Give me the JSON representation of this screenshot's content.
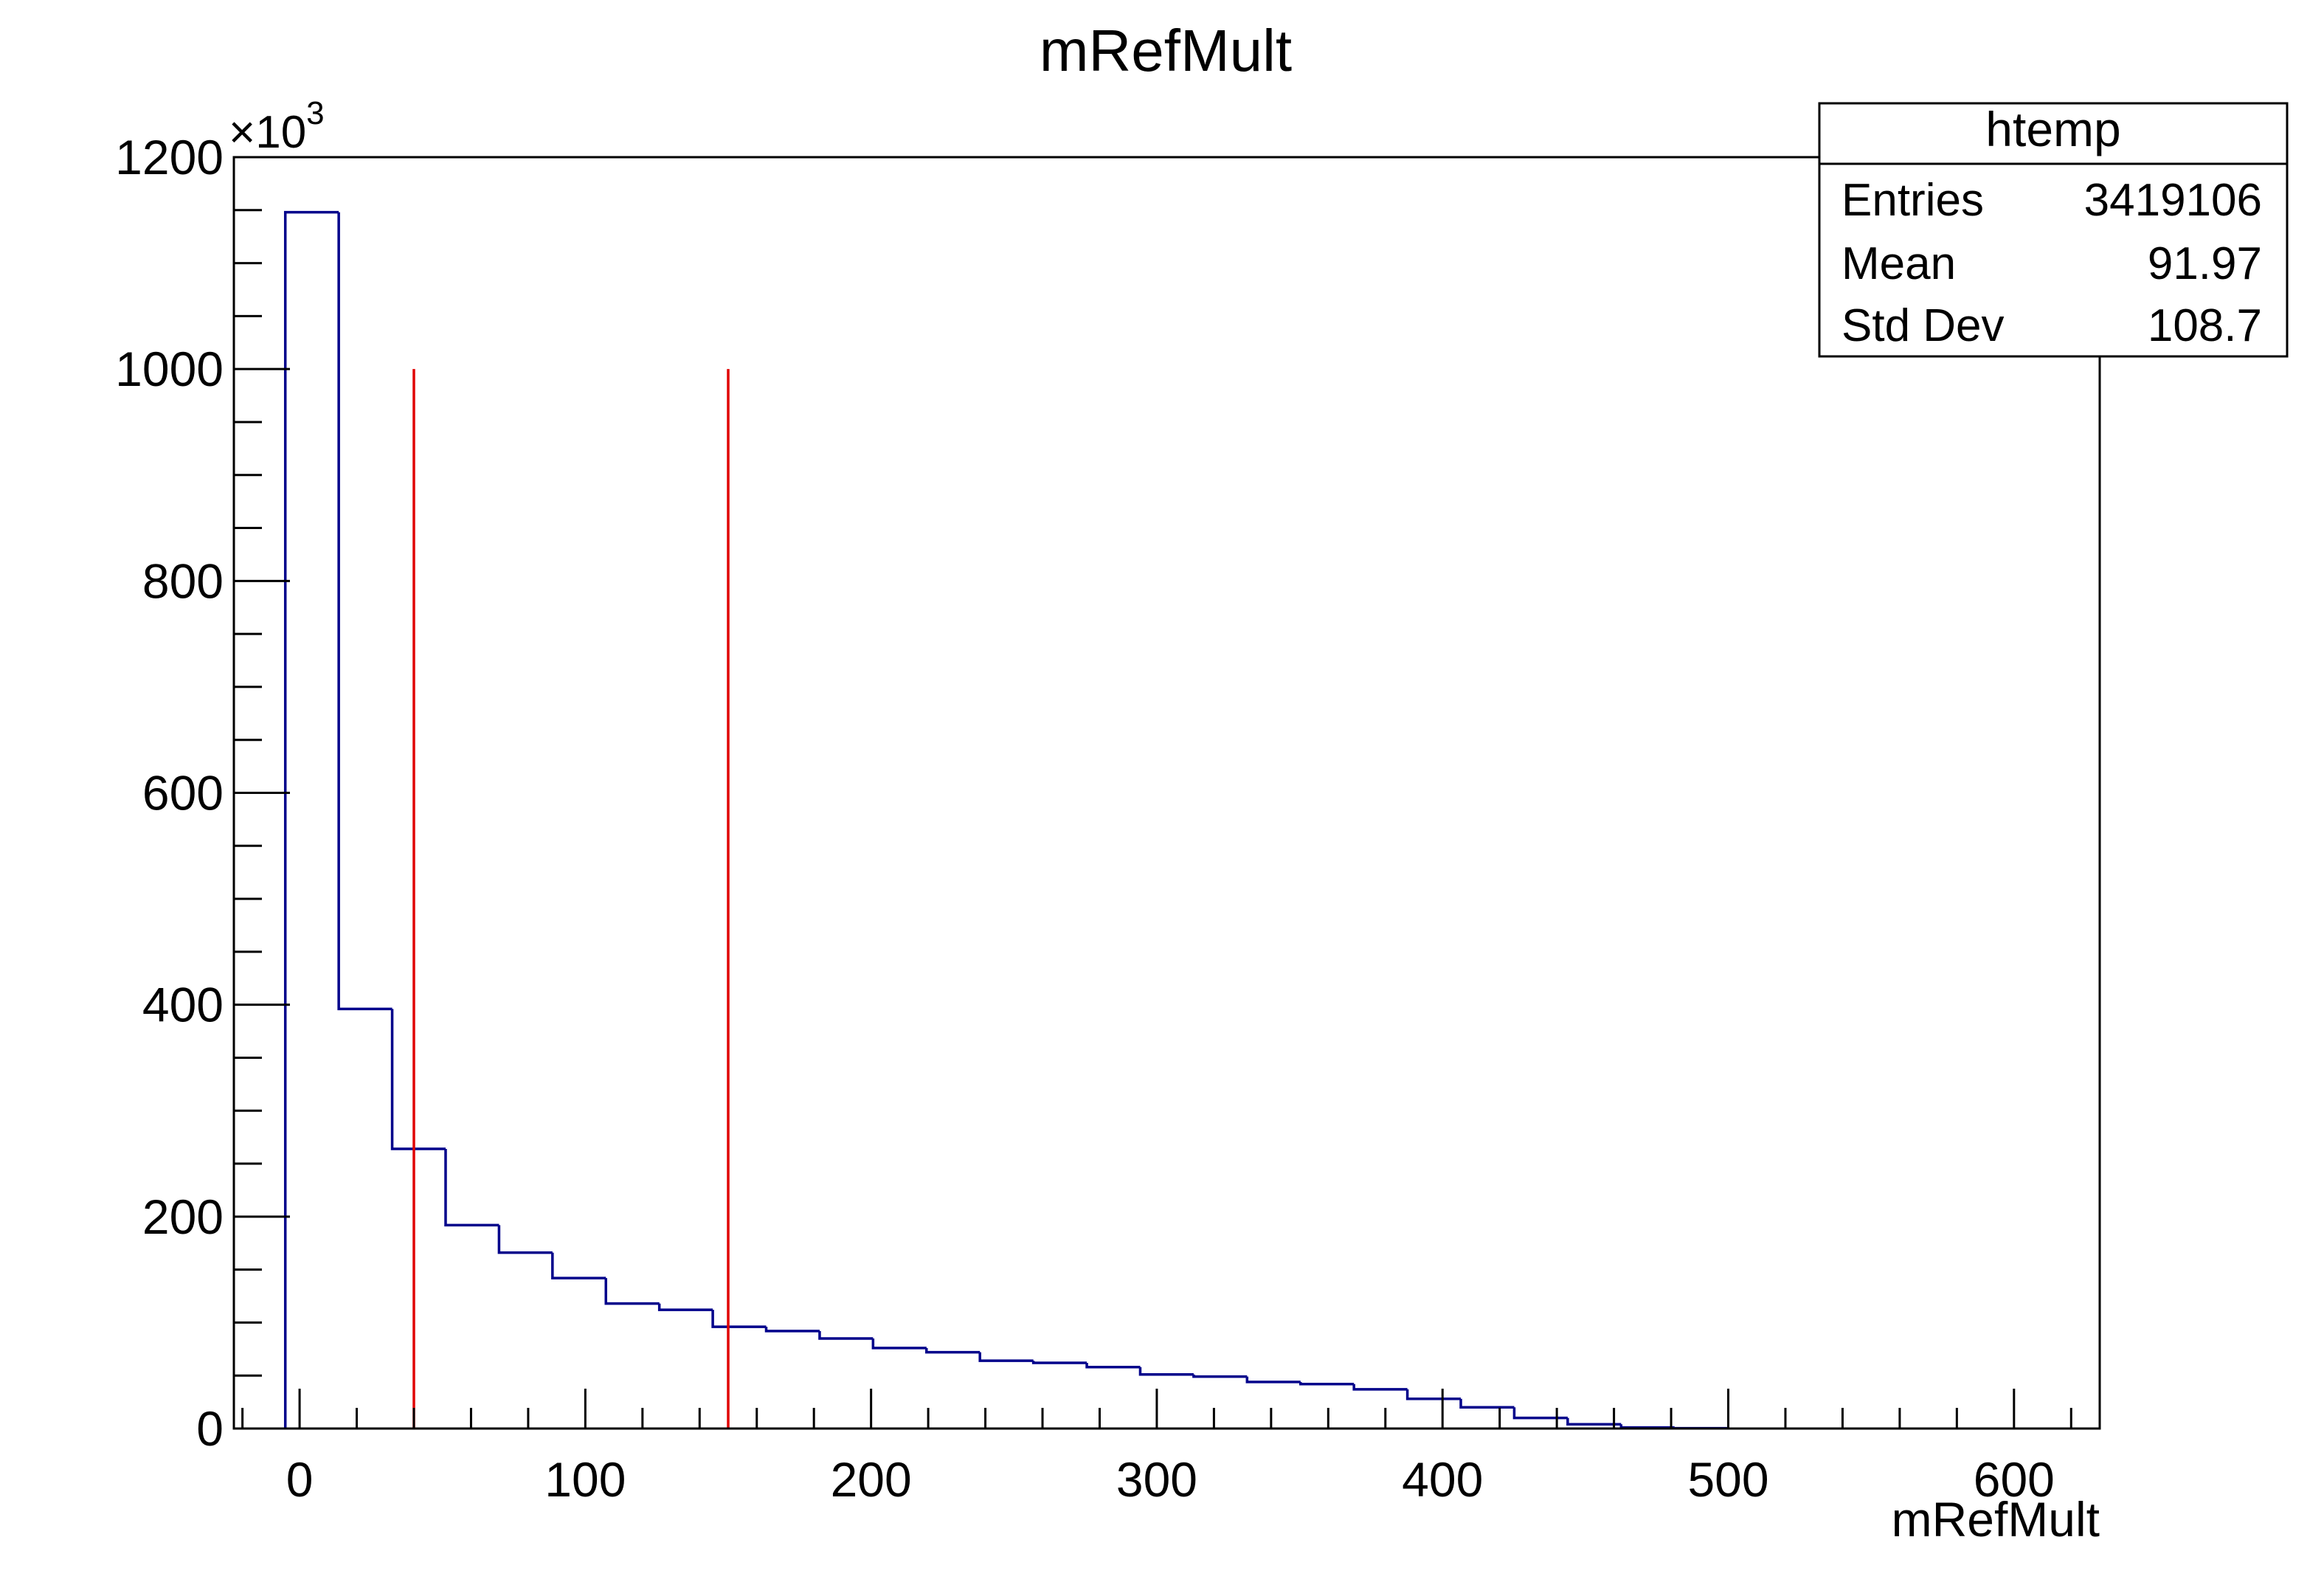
{
  "chart_data": {
    "type": "histogram",
    "title": "mRefMult",
    "xlabel": "mRefMult",
    "ylabel": "",
    "y_multiplier_label": "×10",
    "y_multiplier_exponent": "3",
    "xlim": [
      -23,
      630
    ],
    "ylim": [
      0,
      1200
    ],
    "x_ticks": [
      0,
      100,
      200,
      300,
      400,
      500,
      600
    ],
    "x_tick_labels": [
      "0",
      "100",
      "200",
      "300",
      "400",
      "500",
      "600"
    ],
    "y_ticks": [
      0,
      200,
      400,
      600,
      800,
      1000,
      1200
    ],
    "y_tick_labels": [
      "0",
      "200",
      "400",
      "600",
      "800",
      "1000",
      "1200"
    ],
    "bin_edges": [
      -5,
      13.7,
      32.4,
      51.1,
      69.8,
      88.5,
      107.2,
      125.9,
      144.6,
      163.3,
      182.0,
      200.7,
      219.4,
      238.1,
      256.8,
      275.5,
      294.2,
      312.9,
      331.6,
      350.3,
      369.0,
      387.7,
      406.4,
      425.1,
      443.8,
      462.5,
      481.2,
      499.9
    ],
    "values": [
      1148,
      396,
      264,
      192,
      166,
      142,
      118,
      112,
      96,
      92,
      85,
      76,
      72,
      64,
      62,
      58,
      51,
      49,
      44,
      42,
      37,
      28,
      20,
      10,
      4,
      1,
      0.3
    ],
    "series_color": "#00008b",
    "cut_lines": {
      "x": [
        40,
        150
      ],
      "y_top": 1000,
      "color": "#e00000"
    },
    "grid": false,
    "legend": "none"
  },
  "stats_box": {
    "title": "htemp",
    "rows": [
      {
        "label": "Entries",
        "value": "3419106"
      },
      {
        "label": "Mean",
        "value": "91.97"
      },
      {
        "label": "Std Dev",
        "value": "108.7"
      }
    ]
  }
}
